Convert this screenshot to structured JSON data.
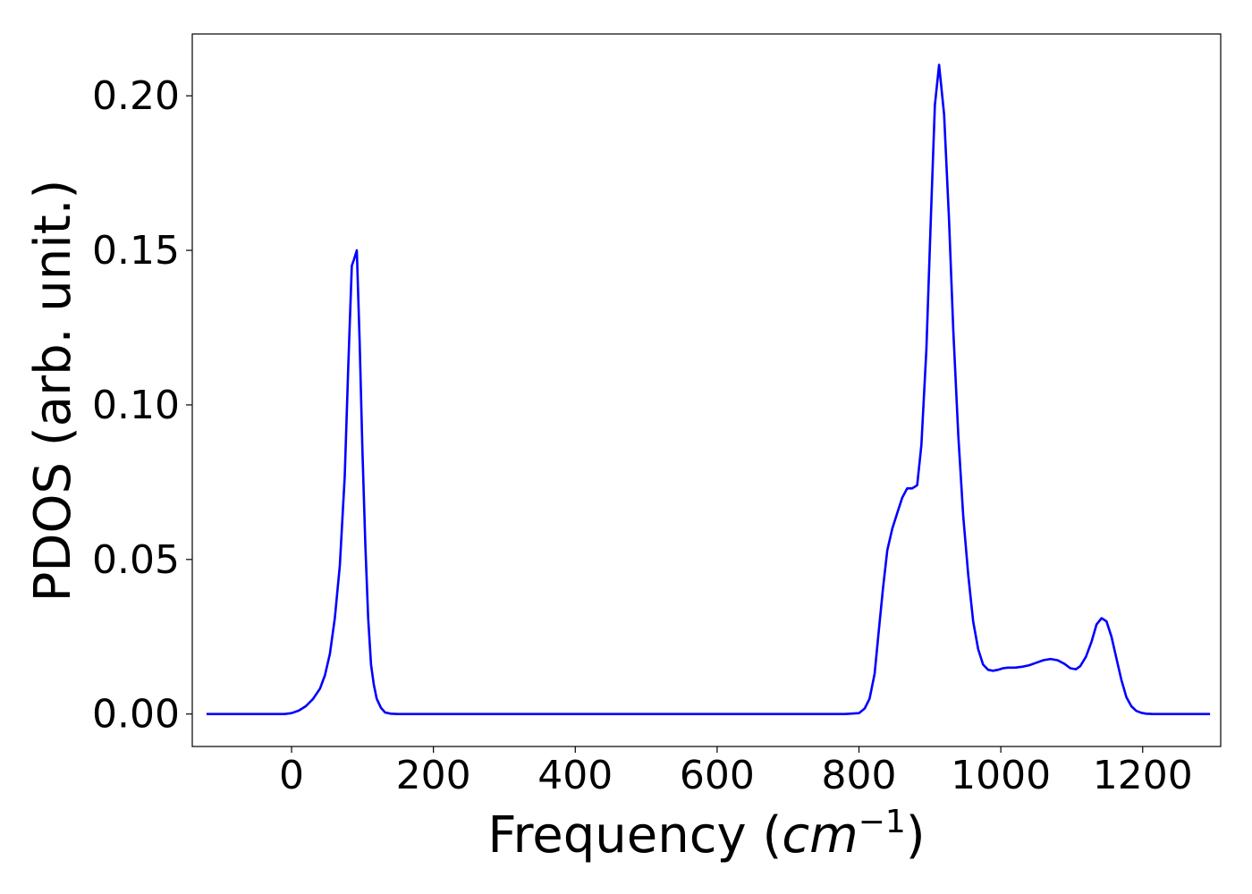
{
  "chart_data": {
    "type": "line",
    "title": "",
    "xlabel": "Frequency (cm⁻¹)",
    "xlabel_parts": {
      "prefix": "Frequency (",
      "var": "cm",
      "sup": "−1",
      "suffix": ")"
    },
    "ylabel": "PDOS (arb. unit.)",
    "xlim": [
      -140,
      1310
    ],
    "ylim": [
      -0.0105,
      0.22
    ],
    "xticks": [
      0,
      200,
      400,
      600,
      800,
      1000,
      1200
    ],
    "xtick_labels": [
      "0",
      "200",
      "400",
      "600",
      "800",
      "1000",
      "1200"
    ],
    "yticks": [
      0.0,
      0.05,
      0.1,
      0.15,
      0.2
    ],
    "ytick_labels": [
      "0.00",
      "0.05",
      "0.10",
      "0.15",
      "0.20"
    ],
    "grid": false,
    "line_color": "#0000ff",
    "series": [
      {
        "x": [
          -120,
          -80,
          -40,
          -10,
          0,
          10,
          20,
          30,
          40,
          47,
          54,
          61,
          68,
          75,
          80,
          85,
          88,
          92,
          96,
          100,
          104,
          108,
          112,
          116,
          120,
          126,
          132,
          140,
          150,
          200,
          300,
          400,
          500,
          600,
          700,
          780,
          800,
          808,
          815,
          822,
          828,
          834,
          840,
          847,
          854,
          861,
          868,
          875,
          882,
          888,
          895,
          901,
          907,
          913,
          920,
          927,
          933,
          940,
          947,
          954,
          961,
          968,
          975,
          982,
          989,
          996,
          1003,
          1010,
          1020,
          1030,
          1040,
          1050,
          1060,
          1070,
          1080,
          1090,
          1098,
          1106,
          1112,
          1120,
          1128,
          1135,
          1142,
          1149,
          1156,
          1163,
          1170,
          1177,
          1184,
          1191,
          1198,
          1205,
          1215,
          1230,
          1260,
          1295
        ],
        "y": [
          0.0,
          0.0,
          0.0,
          0.0,
          0.0003,
          0.0011,
          0.0025,
          0.0048,
          0.0082,
          0.0125,
          0.0195,
          0.031,
          0.048,
          0.077,
          0.113,
          0.145,
          0.147,
          0.15,
          0.12,
          0.085,
          0.055,
          0.031,
          0.016,
          0.0095,
          0.005,
          0.002,
          0.0005,
          0.0001,
          0.0,
          0.0,
          0.0,
          0.0,
          0.0,
          0.0,
          0.0,
          0.0,
          0.0003,
          0.0018,
          0.005,
          0.013,
          0.027,
          0.041,
          0.053,
          0.06,
          0.065,
          0.07,
          0.073,
          0.073,
          0.074,
          0.087,
          0.118,
          0.158,
          0.197,
          0.21,
          0.194,
          0.16,
          0.124,
          0.09,
          0.064,
          0.045,
          0.03,
          0.021,
          0.016,
          0.0143,
          0.014,
          0.0143,
          0.0148,
          0.015,
          0.015,
          0.0153,
          0.0158,
          0.0166,
          0.0174,
          0.0178,
          0.0174,
          0.0162,
          0.0148,
          0.0145,
          0.0155,
          0.0185,
          0.0235,
          0.029,
          0.031,
          0.03,
          0.025,
          0.018,
          0.011,
          0.0055,
          0.0025,
          0.001,
          0.0004,
          0.0001,
          0.0,
          0.0,
          0.0,
          0.0
        ]
      }
    ]
  }
}
